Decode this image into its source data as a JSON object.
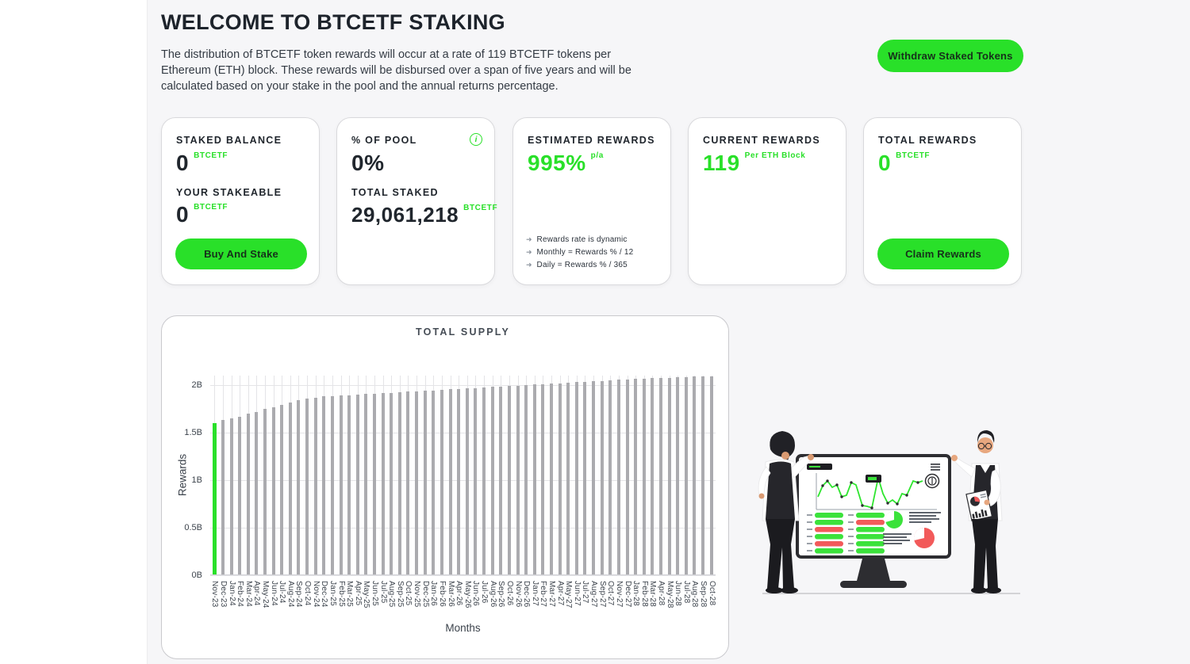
{
  "header": {
    "title": "WELCOME TO BTCETF STAKING",
    "description": "The distribution of BTCETF token rewards will occur at a rate of 119 BTCETF tokens per Ethereum (ETH) block. These rewards will be disbursed over a span of five years and will be calculated based on your stake in the pool and the annual returns percentage.",
    "withdraw_button": "Withdraw Staked Tokens"
  },
  "colors": {
    "accent_green": "#29e029",
    "dark_text": "#1d232b",
    "panel_bg": "#f6f6f8",
    "bar_gray": "#ababaf",
    "pill_red": "#f25a5a"
  },
  "cards": {
    "staked_balance": {
      "title": "STAKED BALANCE",
      "value": "0",
      "unit": "BTCETF",
      "stakeable_title": "YOUR STAKEABLE",
      "stakeable_value": "0",
      "stakeable_unit": "BTCETF",
      "button": "Buy And Stake"
    },
    "pool": {
      "title": "% OF POOL",
      "value": "0%",
      "total_staked_title": "TOTAL STAKED",
      "total_staked_value": "29,061,218",
      "unit": "BTCETF"
    },
    "estimated": {
      "title": "ESTIMATED REWARDS",
      "value": "995%",
      "unit": "p/a",
      "notes": [
        "Rewards rate is dynamic",
        "Monthly = Rewards % / 12",
        "Daily = Rewards % / 365"
      ]
    },
    "current": {
      "title": "CURRENT REWARDS",
      "value": "119",
      "unit": "Per ETH Block"
    },
    "total": {
      "title": "TOTAL REWARDS",
      "value": "0",
      "unit": "BTCETF",
      "button": "Claim Rewards"
    }
  },
  "chart_data": {
    "type": "bar",
    "title": "TOTAL SUPPLY",
    "xlabel": "Months",
    "ylabel": "Rewards",
    "ylim": [
      0,
      2.1
    ],
    "yticks": [
      0,
      0.5,
      1,
      1.5,
      2
    ],
    "ytick_labels": [
      "0B",
      "0.5B",
      "1B",
      "1.5B",
      "2B"
    ],
    "unit": "billions",
    "grid": true,
    "highlight_index": 0,
    "categories": [
      "Nov-23",
      "Dec-23",
      "Jan-24",
      "Feb-24",
      "Mar-24",
      "Apr-24",
      "May-24",
      "Jun-24",
      "Jul-24",
      "Aug-24",
      "Sep-24",
      "Oct-24",
      "Nov-24",
      "Dec-24",
      "Jan-25",
      "Feb-25",
      "Mar-25",
      "Apr-25",
      "May-25",
      "Jun-25",
      "Jul-25",
      "Aug-25",
      "Sep-25",
      "Oct-25",
      "Nov-25",
      "Dec-25",
      "Jan-26",
      "Feb-26",
      "Mar-26",
      "Apr-26",
      "May-26",
      "Jun-26",
      "Jul-26",
      "Aug-26",
      "Sep-26",
      "Oct-26",
      "Nov-26",
      "Dec-26",
      "Jan-27",
      "Feb-27",
      "Mar-27",
      "Apr-27",
      "May-27",
      "Jun-27",
      "Jul-27",
      "Aug-27",
      "Sep-27",
      "Oct-27",
      "Nov-27",
      "Dec-27",
      "Jan-28",
      "Feb-28",
      "Mar-28",
      "Apr-28",
      "May-28",
      "Jun-28",
      "Jul-28",
      "Aug-28",
      "Sep-28",
      "Oct-28"
    ],
    "values": [
      1.6,
      1.63,
      1.65,
      1.67,
      1.7,
      1.72,
      1.75,
      1.77,
      1.79,
      1.82,
      1.84,
      1.86,
      1.87,
      1.88,
      1.885,
      1.89,
      1.895,
      1.9,
      1.905,
      1.91,
      1.915,
      1.92,
      1.925,
      1.93,
      1.935,
      1.94,
      1.945,
      1.95,
      1.955,
      1.96,
      1.965,
      1.97,
      1.975,
      1.98,
      1.985,
      1.99,
      1.995,
      2.0,
      2.005,
      2.01,
      2.015,
      2.02,
      2.025,
      2.03,
      2.035,
      2.04,
      2.045,
      2.05,
      2.055,
      2.06,
      2.065,
      2.07,
      2.073,
      2.076,
      2.079,
      2.082,
      2.085,
      2.088,
      2.091,
      2.094
    ]
  }
}
